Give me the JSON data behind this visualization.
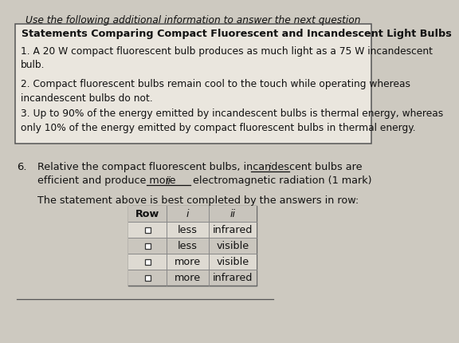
{
  "bg_color": "#cdc9c0",
  "title_italic": "Use the following additional information to answer the next question",
  "box_title": "Statements Comparing Compact Fluorescent and Incandescent Light Bulbs",
  "statement1": "1. A 20 W compact fluorescent bulb produces as much light as a 75 W incandescent\nbulb.",
  "statement2": "2. Compact fluorescent bulbs remain cool to the touch while operating whereas\nincandescent bulbs do not.",
  "statement3": "3. Up to 90% of the energy emitted by incandescent bulbs is thermal energy, whereas\nonly 10% of the energy emitted by compact fluorescent bulbs in thermal energy.",
  "question_num": "6.",
  "question_line1_a": "Relative the compact fluorescent bulbs, incandescent bulbs are",
  "question_blank1": "i",
  "question_line2_a": "efficient and produce more",
  "question_blank2": "ii",
  "question_line2_b": "electromagnetic radiation (1 mark)",
  "below_q": "The statement above is best completed by the answers in row:",
  "table_headers": [
    "Row",
    "i",
    "ii"
  ],
  "table_rows": [
    [
      "less",
      "infrared"
    ],
    [
      "less",
      "visible"
    ],
    [
      "more",
      "visible"
    ],
    [
      "more",
      "infrared"
    ]
  ],
  "font_color": "#111111",
  "box_bg": "#eae6de",
  "table_header_bg": "#c8c4bc",
  "table_row_bg1": "#dedad2",
  "table_row_bg2": "#cac6be"
}
